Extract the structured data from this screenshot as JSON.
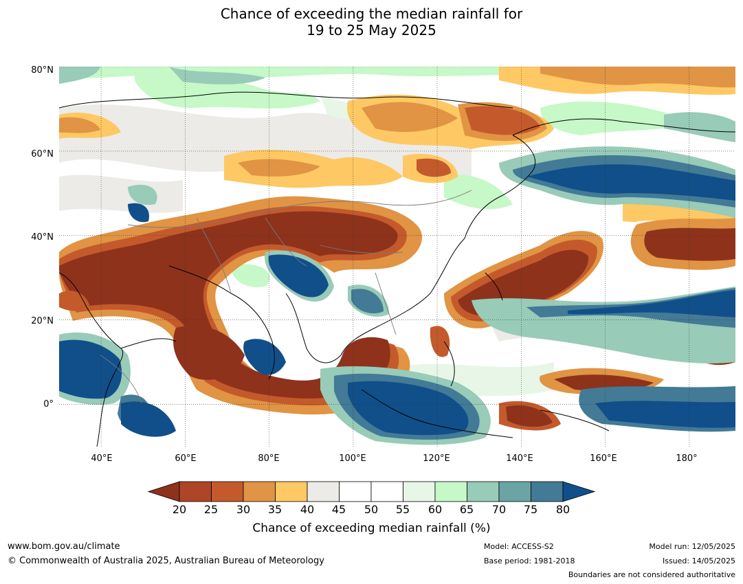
{
  "title": {
    "line1": "Chance of exceeding the median rainfall for",
    "line2": "19 to 25 May 2025"
  },
  "map": {
    "lat_labels": [
      "80°N",
      "60°N",
      "40°N",
      "20°N",
      "0°"
    ],
    "lon_labels": [
      "40°E",
      "60°E",
      "80°E",
      "100°E",
      "120°E",
      "140°E",
      "160°E",
      "180°"
    ],
    "lat_range": [
      -10,
      80
    ],
    "lon_range": [
      30,
      191
    ],
    "colors": {
      "very_dry": "#8e321c",
      "dry": "#c45a2c",
      "mod_dry": "#e09444",
      "light_dry": "#fec864",
      "near_dry": "#ecebe7",
      "neutral": "#ffffff",
      "light_wet": "#e8f6e8",
      "mod_wet": "#c6f8c8",
      "wet": "#98cbb8",
      "wetter": "#6aa4a4",
      "very_wet": "#437a96",
      "extreme_wet": "#104f8a",
      "coast": "#000000",
      "border": "#7a7a7a"
    }
  },
  "colorbar": {
    "ticks": [
      "20",
      "25",
      "30",
      "35",
      "40",
      "45",
      "50",
      "55",
      "60",
      "65",
      "70",
      "75",
      "80"
    ],
    "colors": [
      "#ad4526",
      "#c45a2c",
      "#e09444",
      "#fec864",
      "#ecebe7",
      "#ffffff",
      "#ffffff",
      "#e8f6e8",
      "#c6f8c8",
      "#98cbb8",
      "#6aa4a4",
      "#437a96"
    ],
    "under_color": "#8e321c",
    "over_color": "#104f8a",
    "label": "Chance of exceeding median rainfall (%)"
  },
  "footer": {
    "website": "www.bom.gov.au/climate",
    "copyright": "© Commonwealth of Australia 2025, Australian Bureau of Meteorology",
    "model": "Model: ACCESS-S2",
    "base_period": "Base period: 1981-2018",
    "model_run": "Model run: 12/05/2025",
    "issued": "Issued: 14/05/2025",
    "disclaimer": "Boundaries are not considered authoritative"
  }
}
